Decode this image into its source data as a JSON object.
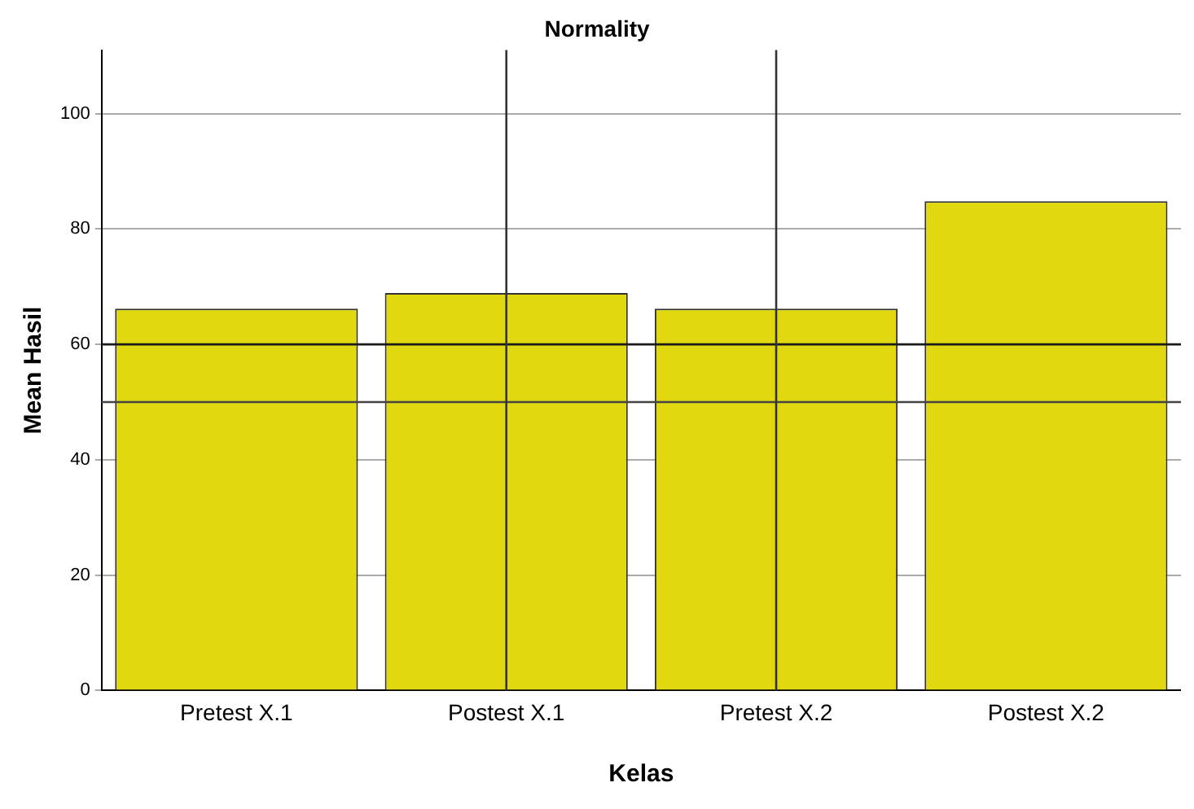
{
  "chart_data": {
    "type": "bar",
    "title": "Normality",
    "xlabel": "Kelas",
    "ylabel": "Mean Hasil",
    "categories": [
      "Pretest X.1",
      "Postest X.1",
      "Pretest X.2",
      "Postest X.2"
    ],
    "values": [
      66.2,
      68.9,
      66.2,
      84.8
    ],
    "color": "#e1d80f",
    "ylim": [
      0,
      111
    ],
    "yticks": [
      0,
      20,
      40,
      60,
      80,
      100
    ],
    "grid": "y",
    "ref_lines": [
      {
        "axis": "y",
        "value": 60,
        "color": "#1a1a1a"
      },
      {
        "axis": "y",
        "value": 50,
        "color": "#444444"
      },
      {
        "axis": "x",
        "value": "Postest X.1",
        "color": "#333333"
      },
      {
        "axis": "x",
        "value": "Pretest X.2",
        "color": "#333333"
      }
    ]
  }
}
